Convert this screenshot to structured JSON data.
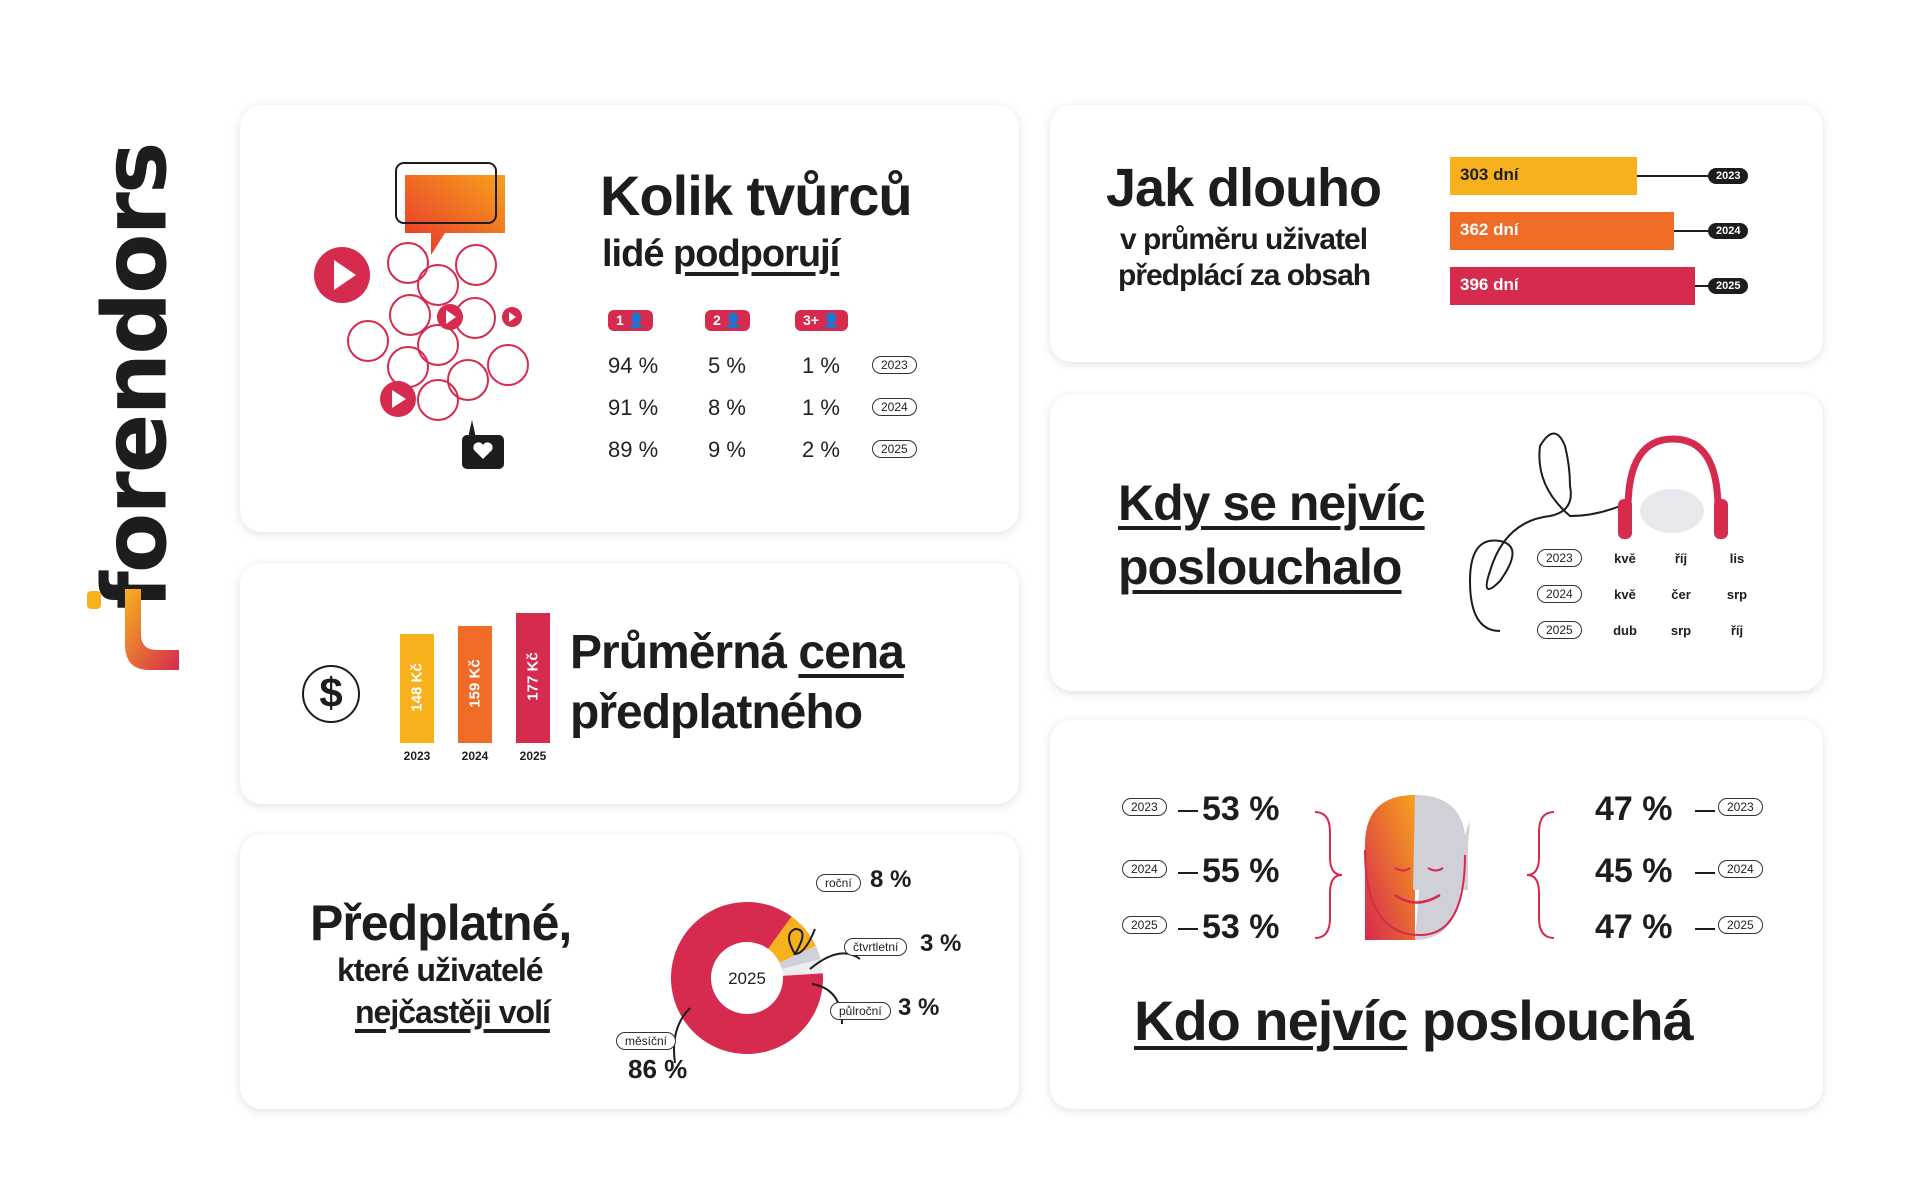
{
  "brand": {
    "name": "forendors"
  },
  "creators": {
    "title": "Kolik tvůrců",
    "subtitle_a": "lidé ",
    "subtitle_b": "podporují",
    "headers": [
      "1",
      "2",
      "3+"
    ],
    "rows": [
      {
        "year": "2023",
        "values": [
          "94 %",
          "5 %",
          "1 %"
        ]
      },
      {
        "year": "2024",
        "values": [
          "91 %",
          "8 %",
          "1 %"
        ]
      },
      {
        "year": "2025",
        "values": [
          "89 %",
          "9 %",
          "2 %"
        ]
      }
    ]
  },
  "price": {
    "title_a": "Průměrná ",
    "title_b": "cena",
    "title_c": "předplatného",
    "currency_icon": "$",
    "bars": [
      {
        "year": "2023",
        "label": "148 Kč",
        "value": 148,
        "color": "#f7b11d"
      },
      {
        "year": "2024",
        "label": "159 Kč",
        "value": 159,
        "color": "#ef6b26"
      },
      {
        "year": "2025",
        "label": "177 Kč",
        "value": 177,
        "color": "#d62a4e"
      }
    ]
  },
  "subscription": {
    "title": "Předplatné,",
    "line2": "které uživatelé",
    "line3": "nejčastěji volí",
    "center": "2025",
    "slices": [
      {
        "label": "měsíční",
        "value": 86,
        "text": "86 %",
        "color": "#d62a4e"
      },
      {
        "label": "roční",
        "value": 8,
        "text": "8 %",
        "color": "#f7b11d"
      },
      {
        "label": "čtvrtletní",
        "value": 3,
        "text": "3 %",
        "color": "#cfd0d8"
      },
      {
        "label": "půlroční",
        "value": 3,
        "text": "3 %",
        "color": "#ececf1"
      }
    ]
  },
  "duration": {
    "title": "Jak dlouho",
    "line2": "v průměru uživatel",
    "line3": "předplácí za obsah",
    "bars": [
      {
        "year": "2023",
        "label": "303 dní",
        "value": 303,
        "color": "#f7b11d"
      },
      {
        "year": "2024",
        "label": "362 dní",
        "value": 362,
        "color": "#ef6b26"
      },
      {
        "year": "2025",
        "label": "396 dní",
        "value": 396,
        "color": "#d62a4e"
      }
    ]
  },
  "listening": {
    "title_a": "Kdy se nejvíc",
    "title_b": "poslouchalo",
    "rows": [
      {
        "year": "2023",
        "months": [
          "kvě",
          "říj",
          "lis"
        ]
      },
      {
        "year": "2024",
        "months": [
          "kvě",
          "čer",
          "srp"
        ]
      },
      {
        "year": "2025",
        "months": [
          "dub",
          "srp",
          "říj"
        ]
      }
    ]
  },
  "who": {
    "title_a": "Kdo nejvíc",
    "title_b": " poslouchá",
    "left": [
      {
        "year": "2023",
        "value": "53 %"
      },
      {
        "year": "2024",
        "value": "55 %"
      },
      {
        "year": "2025",
        "value": "53 %"
      }
    ],
    "right": [
      {
        "year": "2023",
        "value": "47 %"
      },
      {
        "year": "2024",
        "value": "45 %"
      },
      {
        "year": "2025",
        "value": "47 %"
      }
    ]
  }
}
